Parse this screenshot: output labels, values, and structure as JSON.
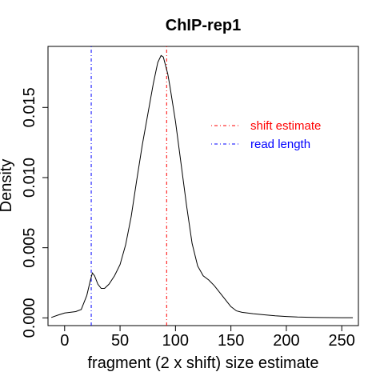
{
  "chart_data": {
    "type": "line",
    "title": "ChIP-rep1",
    "xlabel": "fragment (2 x shift) size estimate",
    "ylabel": "Density",
    "xlim": [
      -15,
      265
    ],
    "ylim": [
      -0.00055,
      0.01935
    ],
    "x_ticks": [
      0,
      50,
      100,
      150,
      200,
      250
    ],
    "x_tick_labels": [
      "0",
      "50",
      "100",
      "150",
      "200",
      "250"
    ],
    "y_ticks": [
      0.0,
      0.005,
      0.01,
      0.015
    ],
    "y_tick_labels": [
      "0.000",
      "0.005",
      "0.010",
      "0.015"
    ],
    "series": [
      {
        "name": "density",
        "color": "#000000",
        "x": [
          -12,
          -6,
          0,
          5,
          10,
          15,
          20,
          23,
          25,
          27,
          30,
          33,
          36,
          40,
          45,
          50,
          55,
          60,
          65,
          70,
          75,
          80,
          84,
          87,
          89,
          91,
          93,
          95,
          100,
          105,
          110,
          115,
          120,
          125,
          130,
          135,
          140,
          145,
          150,
          155,
          160,
          170,
          180,
          190,
          200,
          210,
          220,
          230,
          240,
          250,
          260
        ],
        "y": [
          3e-05,
          0.0002,
          0.00035,
          0.0004,
          0.00045,
          0.0006,
          0.0016,
          0.0026,
          0.0032,
          0.003,
          0.0024,
          0.0021,
          0.0021,
          0.0024,
          0.003,
          0.0038,
          0.0052,
          0.0072,
          0.0098,
          0.0123,
          0.0145,
          0.0167,
          0.0182,
          0.0187,
          0.0186,
          0.018,
          0.0174,
          0.0165,
          0.014,
          0.011,
          0.008,
          0.0053,
          0.0037,
          0.003,
          0.0027,
          0.0023,
          0.0018,
          0.0013,
          0.0008,
          0.0005,
          0.0004,
          0.0003,
          0.00022,
          0.00015,
          0.0001,
          6e-05,
          4e-05,
          3e-05,
          2e-05,
          1e-05,
          1e-05
        ]
      }
    ],
    "vlines": [
      {
        "name": "shift estimate",
        "x": 92,
        "color": "#ff0000",
        "dash": "dotdash"
      },
      {
        "name": "read length",
        "x": 24,
        "color": "#0000ff",
        "dash": "dotdash"
      }
    ],
    "legend": {
      "position": "top-right",
      "items": [
        {
          "label": "shift estimate",
          "color": "#ff0000"
        },
        {
          "label": "read length",
          "color": "#0000ff"
        }
      ]
    }
  }
}
